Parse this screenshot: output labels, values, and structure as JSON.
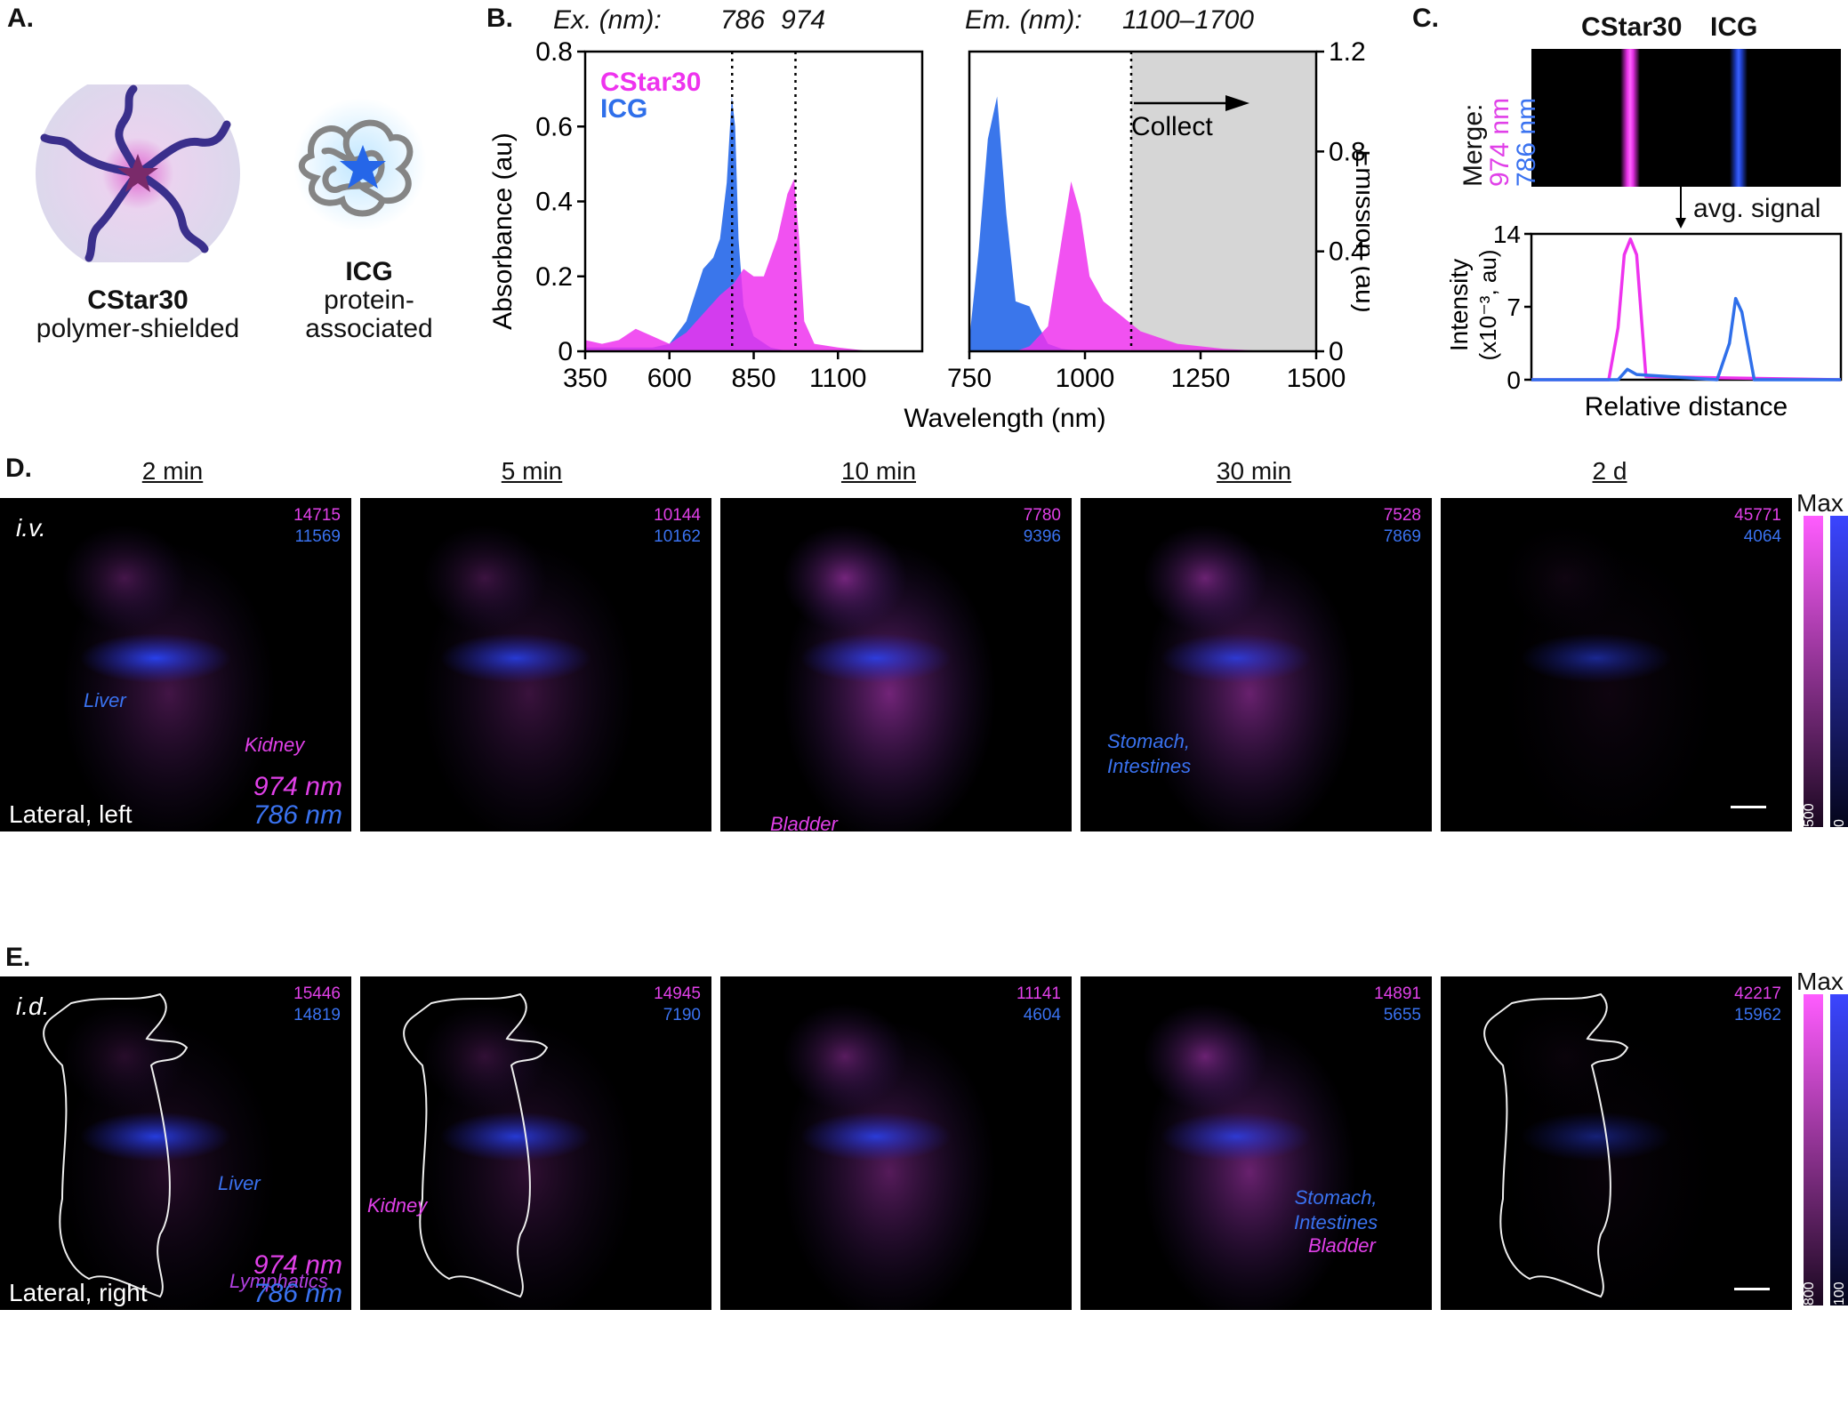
{
  "panelA": {
    "label": "A.",
    "cstar_name": "CStar30",
    "cstar_desc": "polymer-shielded",
    "icg_name": "ICG",
    "icg_desc_1": "protein-",
    "icg_desc_2": "associated"
  },
  "panelB": {
    "label": "B.",
    "ex_label": "Ex. (nm):",
    "ex_value_1": "786",
    "ex_value_2": "974",
    "em_label": "Em. (nm):",
    "em_value": "1100–1700",
    "collect_label": "Collect",
    "xlabel": "Wavelength (nm)",
    "ylabel_left": "Absorbance (au)",
    "ylabel_right": "Emission (au)",
    "legend_cstar": "CStar30",
    "legend_icg": "ICG",
    "left_xticks": [
      "350",
      "600",
      "850",
      "1100"
    ],
    "left_yticks": [
      "0",
      "0.2",
      "0.4",
      "0.6",
      "0.8"
    ],
    "right_xticks": [
      "750",
      "1000",
      "1250",
      "1500"
    ],
    "right_yticks": [
      "0",
      "0.4",
      "0.8",
      "1.2"
    ]
  },
  "panelC": {
    "label": "C.",
    "col_cstar": "CStar30",
    "col_icg": "ICG",
    "merge_1": "Merge:",
    "merge_2": "974 nm",
    "merge_3": "786 nm",
    "avg_signal": "avg. signal",
    "ylabel_1": "Intensity",
    "ylabel_2": "(x10⁻³, au)",
    "yticks": [
      "0",
      "7",
      "14"
    ],
    "xlabel": "Relative distance"
  },
  "chart_data": [
    {
      "type": "area",
      "title": "Absorbance",
      "xlabel": "Wavelength (nm)",
      "ylabel": "Absorbance (au)",
      "xlim": [
        350,
        1350
      ],
      "ylim": [
        0,
        0.8
      ],
      "vlines": [
        786,
        974
      ],
      "series": [
        {
          "name": "ICG",
          "color": "#2f6fea",
          "x": [
            350,
            450,
            550,
            600,
            650,
            700,
            730,
            750,
            770,
            785,
            795,
            805,
            820,
            850,
            900,
            950
          ],
          "y": [
            0.01,
            0.01,
            0.01,
            0.02,
            0.08,
            0.22,
            0.25,
            0.3,
            0.45,
            0.68,
            0.6,
            0.3,
            0.12,
            0.04,
            0.01,
            0
          ]
        },
        {
          "name": "CStar30",
          "color": "#ee33ee",
          "x": [
            350,
            400,
            450,
            500,
            550,
            600,
            650,
            700,
            750,
            790,
            820,
            850,
            880,
            920,
            950,
            970,
            985,
            1000,
            1030,
            1100,
            1200,
            1350
          ],
          "y": [
            0.03,
            0.02,
            0.03,
            0.06,
            0.04,
            0.02,
            0.05,
            0.1,
            0.15,
            0.18,
            0.22,
            0.2,
            0.2,
            0.3,
            0.42,
            0.46,
            0.3,
            0.08,
            0.02,
            0.01,
            0,
            0
          ]
        }
      ]
    },
    {
      "type": "area",
      "title": "Emission",
      "xlabel": "Wavelength (nm)",
      "ylabel": "Emission (au)",
      "xlim": [
        750,
        1500
      ],
      "ylim": [
        0,
        1.2
      ],
      "vlines": [
        1100
      ],
      "shaded_range": [
        1100,
        1500
      ],
      "series": [
        {
          "name": "ICG",
          "color": "#2f6fea",
          "x": [
            750,
            770,
            790,
            810,
            830,
            850,
            880,
            900,
            920,
            950,
            1000
          ],
          "y": [
            0.05,
            0.4,
            0.85,
            1.02,
            0.55,
            0.2,
            0.18,
            0.1,
            0.03,
            0.01,
            0
          ]
        },
        {
          "name": "CStar30",
          "color": "#ee33ee",
          "x": [
            850,
            880,
            920,
            950,
            970,
            990,
            1010,
            1040,
            1080,
            1120,
            1200,
            1300,
            1400
          ],
          "y": [
            0,
            0.02,
            0.1,
            0.45,
            0.68,
            0.55,
            0.3,
            0.2,
            0.14,
            0.08,
            0.03,
            0.01,
            0
          ]
        }
      ]
    },
    {
      "type": "line",
      "title": "avg. signal",
      "xlabel": "Relative distance",
      "ylabel": "Intensity (x10⁻³, au)",
      "xlim": [
        0,
        100
      ],
      "ylim": [
        0,
        14
      ],
      "series": [
        {
          "name": "974 nm",
          "color": "#ee33ee",
          "x": [
            0,
            25,
            28,
            30,
            32,
            34,
            37,
            100
          ],
          "y": [
            0,
            0,
            5,
            12,
            13.5,
            12,
            0.3,
            0
          ]
        },
        {
          "name": "786 nm",
          "color": "#2f6fea",
          "x": [
            0,
            28,
            31,
            34,
            60,
            64,
            66,
            68,
            72,
            100
          ],
          "y": [
            0,
            0,
            1,
            0.5,
            0,
            3.5,
            7.8,
            6.5,
            0,
            0
          ]
        }
      ]
    }
  ],
  "panelD": {
    "label": "D.",
    "route": "i.v.",
    "view": "Lateral, left",
    "ch1": "974 nm",
    "ch2": "786 nm",
    "timepoints": [
      "2 min",
      "5 min",
      "10 min",
      "30 min",
      "2 d"
    ],
    "counts_974": [
      "14715",
      "10144",
      "7780",
      "7528",
      "45771"
    ],
    "counts_786": [
      "11569",
      "10162",
      "9396",
      "7869",
      "4064"
    ],
    "organ_liver": "Liver",
    "organ_kidney": "Kidney",
    "organ_bladder": "Bladder",
    "organ_stomach_1": "Stomach,",
    "organ_stomach_2": "Intestines",
    "bar_max": "Max",
    "bar_min_974": "500",
    "bar_min_786": "0"
  },
  "panelE": {
    "label": "E.",
    "route": "i.d.",
    "view": "Lateral, right",
    "ch1": "974 nm",
    "ch2": "786 nm",
    "counts_974": [
      "15446",
      "14945",
      "11141",
      "14891",
      "42217"
    ],
    "counts_786": [
      "14819",
      "7190",
      "4604",
      "5655",
      "15962"
    ],
    "organ_liver": "Liver",
    "organ_lymph": "Lymphatics",
    "organ_kidney": "Kidney",
    "organ_stomach_1": "Stomach,",
    "organ_stomach_2": "Intestines",
    "organ_bladder": "Bladder",
    "bar_max": "Max",
    "bar_min_974": "800",
    "bar_min_786": "100"
  }
}
